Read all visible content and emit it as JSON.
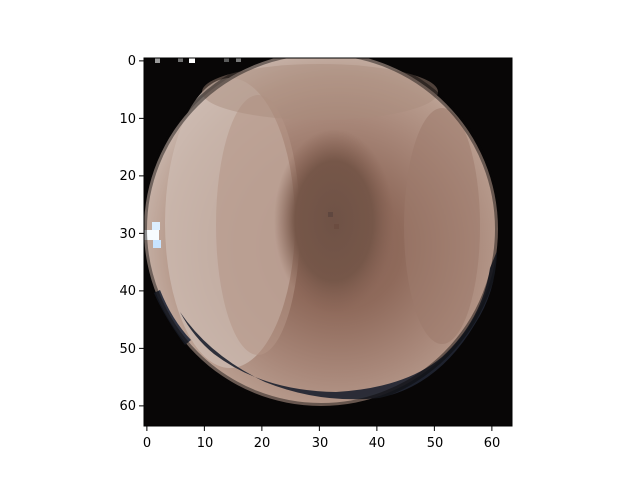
{
  "figure": {
    "background": "#ffffff"
  },
  "chart_data": {
    "type": "heatmap",
    "title": "",
    "xlabel": "",
    "ylabel": "",
    "image_grid": [
      64,
      64
    ],
    "xlim": [
      -0.5,
      63.5
    ],
    "ylim": [
      63.5,
      -0.5
    ],
    "x_ticks": [
      "0",
      "10",
      "20",
      "30",
      "40",
      "50",
      "60"
    ],
    "y_ticks": [
      "0",
      "10",
      "20",
      "30",
      "40",
      "50",
      "60"
    ],
    "colors": {
      "background": "#080606",
      "rim_dark": "#1f2431",
      "bright_edge": "#eaf6ff",
      "light_blue": "#b8d8f5",
      "pale": "#cdbcb3",
      "mid_brown": "#a88779",
      "dark_brown": "#846052",
      "center_dark": "#6f5246",
      "axis": "#000000"
    }
  }
}
